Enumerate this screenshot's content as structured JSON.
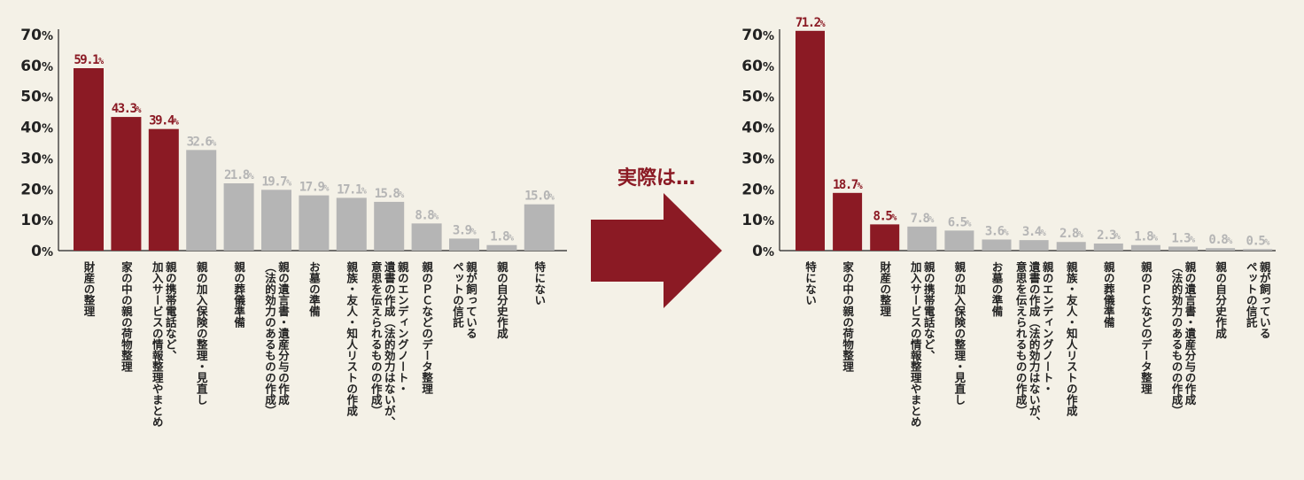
{
  "colors": {
    "highlight": "#8b1a24",
    "normal": "#b5b5b5",
    "text": "#222222",
    "background": "#f4f1e7"
  },
  "arrow_label": "実際は…",
  "chart_data": [
    {
      "type": "bar",
      "ylim": [
        0,
        70
      ],
      "yticks": [
        0,
        10,
        20,
        30,
        40,
        50,
        60,
        70
      ],
      "tick_suffix": "%",
      "categories": [
        "財産の整理",
        "家の中の親の荷物整理",
        "親の携帯電話など、\n加入サービスの情報整理やまとめ",
        "親の加入保険の整理・見直し",
        "親の葬儀準備",
        "親の遺言書・遺産分与の作成\n（法的効力のあるものの作成）",
        "お墓の準備",
        "親族・友人・知人リストの作成",
        "親のエンディングノート・\n遺書の作成（法的効力はないが、\n意思を伝えられるものの作成）",
        "親のＰＣなどのデータ整理",
        "親が飼っている\nペットの信託",
        "親の自分史作成",
        "特にない"
      ],
      "values": [
        59.1,
        43.3,
        39.4,
        32.6,
        21.8,
        19.7,
        17.9,
        17.1,
        15.8,
        8.8,
        3.9,
        1.8,
        15.0
      ],
      "value_labels": [
        "59.1",
        "43.3",
        "39.4",
        "32.6",
        "21.8",
        "19.7",
        "17.9",
        "17.1",
        "15.8",
        "8.8",
        "3.9",
        "1.8",
        "15.0"
      ],
      "highlighted": [
        true,
        true,
        true,
        false,
        false,
        false,
        false,
        false,
        false,
        false,
        false,
        false,
        false
      ]
    },
    {
      "type": "bar",
      "ylim": [
        0,
        70
      ],
      "yticks": [
        0,
        10,
        20,
        30,
        40,
        50,
        60,
        70
      ],
      "tick_suffix": "%",
      "categories": [
        "特にない",
        "家の中の親の荷物整理",
        "財産の整理",
        "親の携帯電話など、\n加入サービスの情報整理やまとめ",
        "親の加入保険の整理・見直し",
        "お墓の準備",
        "親のエンディングノート・\n遺書の作成（法的効力はないが、\n意思を伝えられるものの作成）",
        "親族・友人・知人リストの作成",
        "親の葬儀準備",
        "親のＰＣなどのデータ整理",
        "親の遺言書・遺産分与の作成\n（法的効力のあるものの作成）",
        "親の自分史作成",
        "親が飼っている\nペットの信託"
      ],
      "values": [
        71.2,
        18.7,
        8.5,
        7.8,
        6.5,
        3.6,
        3.4,
        2.8,
        2.3,
        1.8,
        1.3,
        0.8,
        0.5
      ],
      "value_labels": [
        "71.2",
        "18.7",
        "8.5",
        "7.8",
        "6.5",
        "3.6",
        "3.4",
        "2.8",
        "2.3",
        "1.8",
        "1.3",
        "0.8",
        "0.5"
      ],
      "highlighted": [
        true,
        true,
        true,
        false,
        false,
        false,
        false,
        false,
        false,
        false,
        false,
        false,
        false
      ]
    }
  ]
}
